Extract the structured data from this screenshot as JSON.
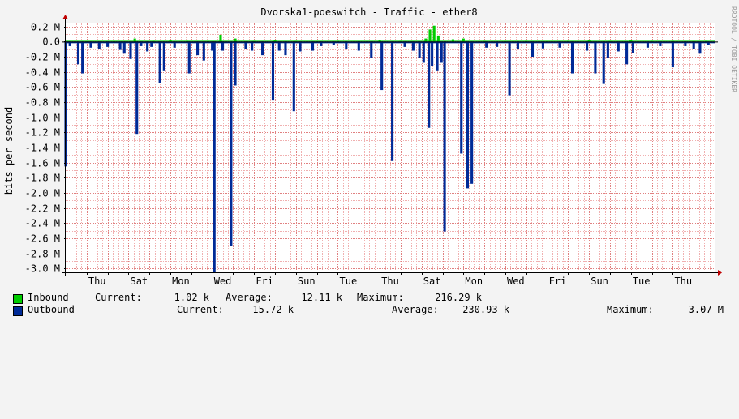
{
  "chart_data": {
    "type": "area",
    "title": "Dvorska1-poeswitch - Traffic - ether8",
    "ylabel": "bits per second",
    "watermark": "RRDTOOL / TOBI OETIKER",
    "ylim": [
      -3050000,
      250000
    ],
    "y_ticks": [
      {
        "value": 200000,
        "label": "0.2 M"
      },
      {
        "value": 0,
        "label": "0.0"
      },
      {
        "value": -200000,
        "label": "-0.2 M"
      },
      {
        "value": -400000,
        "label": "-0.4 M"
      },
      {
        "value": -600000,
        "label": "-0.6 M"
      },
      {
        "value": -800000,
        "label": "-0.8 M"
      },
      {
        "value": -1000000,
        "label": "-1.0 M"
      },
      {
        "value": -1200000,
        "label": "-1.2 M"
      },
      {
        "value": -1400000,
        "label": "-1.4 M"
      },
      {
        "value": -1600000,
        "label": "-1.6 M"
      },
      {
        "value": -1800000,
        "label": "-1.8 M"
      },
      {
        "value": -2000000,
        "label": "-2.0 M"
      },
      {
        "value": -2200000,
        "label": "-2.2 M"
      },
      {
        "value": -2400000,
        "label": "-2.4 M"
      },
      {
        "value": -2600000,
        "label": "-2.6 M"
      },
      {
        "value": -2800000,
        "label": "-2.8 M"
      },
      {
        "value": -3000000,
        "label": "-3.0 M"
      }
    ],
    "x_day_labels": [
      "Thu",
      "Sat",
      "Mon",
      "Wed",
      "Fri",
      "Sun",
      "Tue",
      "Thu",
      "Sat",
      "Mon",
      "Wed",
      "Fri",
      "Sun",
      "Tue",
      "Thu"
    ],
    "x_range_days": [
      0,
      31
    ],
    "series": [
      {
        "name": "Inbound",
        "color": "#00cc00",
        "points": [
          [
            0.15,
            15000
          ],
          [
            1.0,
            10000
          ],
          [
            2.3,
            15000
          ],
          [
            3.3,
            40000
          ],
          [
            4.2,
            20000
          ],
          [
            5.0,
            25000
          ],
          [
            5.8,
            20000
          ],
          [
            6.8,
            15000
          ],
          [
            7.4,
            90000
          ],
          [
            8.1,
            40000
          ],
          [
            9.0,
            20000
          ],
          [
            10.0,
            25000
          ],
          [
            11.0,
            20000
          ],
          [
            12.0,
            15000
          ],
          [
            13.0,
            20000
          ],
          [
            14.0,
            15000
          ],
          [
            15.0,
            25000
          ],
          [
            16.0,
            20000
          ],
          [
            16.5,
            15000
          ],
          [
            17.2,
            40000
          ],
          [
            17.4,
            160000
          ],
          [
            17.6,
            210000
          ],
          [
            17.8,
            80000
          ],
          [
            18.5,
            30000
          ],
          [
            19.0,
            40000
          ],
          [
            20.0,
            20000
          ],
          [
            21.0,
            15000
          ],
          [
            22.0,
            20000
          ],
          [
            23.0,
            15000
          ],
          [
            24.0,
            20000
          ],
          [
            25.0,
            25000
          ],
          [
            26.0,
            20000
          ],
          [
            27.0,
            25000
          ],
          [
            28.0,
            20000
          ],
          [
            29.0,
            20000
          ],
          [
            30.0,
            15000
          ],
          [
            30.6,
            20000
          ]
        ]
      },
      {
        "name": "Outbound",
        "color": "#002a97",
        "points": [
          [
            0.0,
            -1650000
          ],
          [
            0.2,
            -60000
          ],
          [
            0.6,
            -300000
          ],
          [
            0.8,
            -420000
          ],
          [
            1.2,
            -80000
          ],
          [
            1.6,
            -100000
          ],
          [
            2.0,
            -70000
          ],
          [
            2.6,
            -110000
          ],
          [
            2.8,
            -160000
          ],
          [
            3.1,
            -230000
          ],
          [
            3.4,
            -1220000
          ],
          [
            3.6,
            -60000
          ],
          [
            3.9,
            -130000
          ],
          [
            4.1,
            -70000
          ],
          [
            4.5,
            -550000
          ],
          [
            4.7,
            -380000
          ],
          [
            5.2,
            -80000
          ],
          [
            5.9,
            -420000
          ],
          [
            6.3,
            -180000
          ],
          [
            6.6,
            -250000
          ],
          [
            7.0,
            -120000
          ],
          [
            7.1,
            -3050000
          ],
          [
            7.5,
            -120000
          ],
          [
            7.9,
            -2700000
          ],
          [
            8.1,
            -580000
          ],
          [
            8.6,
            -100000
          ],
          [
            8.9,
            -120000
          ],
          [
            9.4,
            -180000
          ],
          [
            9.9,
            -780000
          ],
          [
            10.2,
            -120000
          ],
          [
            10.5,
            -180000
          ],
          [
            10.9,
            -920000
          ],
          [
            11.2,
            -130000
          ],
          [
            11.8,
            -120000
          ],
          [
            12.2,
            -60000
          ],
          [
            12.8,
            -50000
          ],
          [
            13.4,
            -100000
          ],
          [
            14.0,
            -120000
          ],
          [
            14.6,
            -220000
          ],
          [
            15.1,
            -640000
          ],
          [
            15.6,
            -1580000
          ],
          [
            16.2,
            -70000
          ],
          [
            16.6,
            -120000
          ],
          [
            16.9,
            -220000
          ],
          [
            17.1,
            -280000
          ],
          [
            17.35,
            -1140000
          ],
          [
            17.5,
            -320000
          ],
          [
            17.75,
            -380000
          ],
          [
            17.95,
            -280000
          ],
          [
            18.1,
            -2510000
          ],
          [
            18.9,
            -1480000
          ],
          [
            19.2,
            -1940000
          ],
          [
            19.4,
            -1880000
          ],
          [
            20.1,
            -80000
          ],
          [
            20.6,
            -70000
          ],
          [
            21.2,
            -710000
          ],
          [
            21.6,
            -100000
          ],
          [
            22.3,
            -200000
          ],
          [
            22.8,
            -90000
          ],
          [
            23.6,
            -80000
          ],
          [
            24.2,
            -420000
          ],
          [
            24.9,
            -120000
          ],
          [
            25.3,
            -420000
          ],
          [
            25.7,
            -560000
          ],
          [
            25.9,
            -220000
          ],
          [
            26.4,
            -130000
          ],
          [
            26.8,
            -300000
          ],
          [
            27.1,
            -150000
          ],
          [
            27.8,
            -80000
          ],
          [
            28.4,
            -60000
          ],
          [
            29.0,
            -340000
          ],
          [
            29.6,
            -60000
          ],
          [
            30.0,
            -100000
          ],
          [
            30.3,
            -160000
          ],
          [
            30.7,
            -40000
          ]
        ]
      }
    ]
  },
  "legend": [
    {
      "name": "Inbound",
      "current_label": "Current:",
      "current_value": "1.02 k",
      "average_label": "Average:",
      "average_value": "12.11 k",
      "maximum_label": "Maximum:",
      "maximum_value": "216.29 k"
    },
    {
      "name": "Outbound",
      "current_label": "Current:",
      "current_value": "15.72 k",
      "average_label": "Average:",
      "average_value": "230.93 k",
      "maximum_label": "Maximum:",
      "maximum_value": "3.07 M"
    }
  ]
}
